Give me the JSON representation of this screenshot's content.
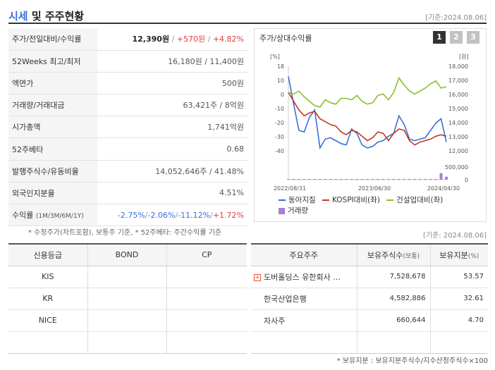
{
  "header": {
    "title_main": "시세",
    "title_rest": " 및 주주현황",
    "date": "[기준:2024.08.06]"
  },
  "summary": {
    "price_row": {
      "label": "주가/전일대비/수익률",
      "price": "12,390원",
      "sep": " / ",
      "change": "+570원",
      "sep2": " / ",
      "rate": "+4.82%"
    },
    "rows": [
      {
        "label": "52Weeks 최고/최저",
        "value": "16,180원 / 11,400원"
      },
      {
        "label": "액면가",
        "value": "500원"
      },
      {
        "label": "거래량/거래대금",
        "value": "63,421주 / 8억원"
      },
      {
        "label": "시가총액",
        "value": "1,741억원"
      },
      {
        "label": "52주베타",
        "value": "0.68"
      },
      {
        "label": "발행주식수/유동비율",
        "value": "14,052,646주 / 41.48%"
      },
      {
        "label": "외국인지분율",
        "value": "4.51%"
      }
    ],
    "return_row": {
      "label": "수익률",
      "periods": "(1M/3M/6M/1Y)",
      "r1": "-2.75%",
      "r2": "-2.06%",
      "r3": "-11.12%",
      "r4": "+1.72%",
      "slash": "/"
    },
    "note": "* 수정주가(차트포함), 보통주 기준, * 52주베타: 주간수익률 기준"
  },
  "chart_panel": {
    "title": "주가/상대수익률",
    "pages": [
      "1",
      "2",
      "3"
    ],
    "legend": {
      "stock": "동아지질",
      "kospi": "KOSPI대비(좌)",
      "sector": "건설업대비(좌)",
      "volume": "거래량"
    },
    "colors": {
      "stock": "#3a6fd8",
      "kospi": "#c0391e",
      "sector": "#8cbf2a",
      "volume": "#a87fd6"
    }
  },
  "chart_data": {
    "type": "line",
    "left_unit": "[%]",
    "right_unit": "[원]",
    "left_ticks": [
      "18",
      "10",
      "0",
      "-10",
      "-20",
      "-30",
      "-40"
    ],
    "right_ticks": [
      "18,000",
      "17,000",
      "16,000",
      "15,000",
      "14,000",
      "13,000",
      "12,000"
    ],
    "volume_ticks": [
      "500,000",
      "0"
    ],
    "x_ticks": [
      "2022/08/31",
      "2023/06/30",
      "2024/04/30"
    ],
    "y_left_range": [
      -40,
      18
    ],
    "y_right_range": [
      12000,
      18000
    ],
    "series": [
      {
        "name": "동아지질",
        "axis": "left",
        "values": [
          11,
          -8,
          -26,
          -27,
          -17,
          -12,
          -38,
          -32,
          -31,
          -33,
          -35,
          -36,
          -25,
          -28,
          -36,
          -38,
          -37,
          -34,
          -33,
          -30,
          -28,
          -16,
          -22,
          -32,
          -33,
          -32,
          -31,
          -26,
          -21,
          -18,
          -34
        ]
      },
      {
        "name": "KOSPI대비(좌)",
        "axis": "left",
        "values": [
          0,
          -6,
          -12,
          -16,
          -14,
          -13,
          -18,
          -20,
          -22,
          -23,
          -27,
          -29,
          -26,
          -27,
          -30,
          -33,
          -31,
          -27,
          -28,
          -33,
          -28,
          -25,
          -26,
          -33,
          -36,
          -34,
          -33,
          -32,
          -30,
          -29,
          -30
        ]
      },
      {
        "name": "건설업대비(좌)",
        "axis": "left",
        "values": [
          0,
          -1,
          1,
          -3,
          -6,
          -9,
          -10,
          -5,
          -7,
          -8,
          -4,
          -4,
          -5,
          -2,
          -6,
          -8,
          -7,
          -2,
          -1,
          -5,
          0,
          10,
          5,
          1,
          -1,
          1,
          3,
          6,
          8,
          3,
          4
        ]
      },
      {
        "name": "거래량",
        "axis": "volume",
        "values": [
          18000,
          8000,
          25000,
          6000,
          12000,
          9000,
          5000,
          15000,
          7000,
          6000,
          5000,
          9000,
          6000,
          4000,
          6000,
          5000,
          7000,
          10000,
          8000,
          5000,
          12000,
          9000,
          7000,
          8000,
          11000,
          8000,
          6000,
          7000,
          9000,
          260000,
          120000
        ]
      }
    ]
  },
  "date2": "[기준: 2024.08.06]",
  "credit": {
    "headers": [
      "신용등급",
      "BOND",
      "CP"
    ],
    "rows": [
      [
        "KIS",
        "",
        ""
      ],
      [
        "KR",
        "",
        ""
      ],
      [
        "NICE",
        "",
        ""
      ],
      [
        "",
        "",
        ""
      ]
    ]
  },
  "holders": {
    "headers": {
      "name": "주요주주",
      "shares": "보유주식수",
      "shares_unit": "(보통)",
      "ratio": "보유지분",
      "ratio_unit": "(%)"
    },
    "expand_icon": "+",
    "rows": [
      {
        "name": "도버홀딩스 유한회사 …",
        "shares": "7,528,678",
        "ratio": "53.57"
      },
      {
        "name": "한국산업은행",
        "shares": "4,582,886",
        "ratio": "32.61"
      },
      {
        "name": "자사주",
        "shares": "660,644",
        "ratio": "4.70"
      }
    ],
    "note": "* 보유지분 : 보유지분주식수/지수산정주식수×100"
  }
}
